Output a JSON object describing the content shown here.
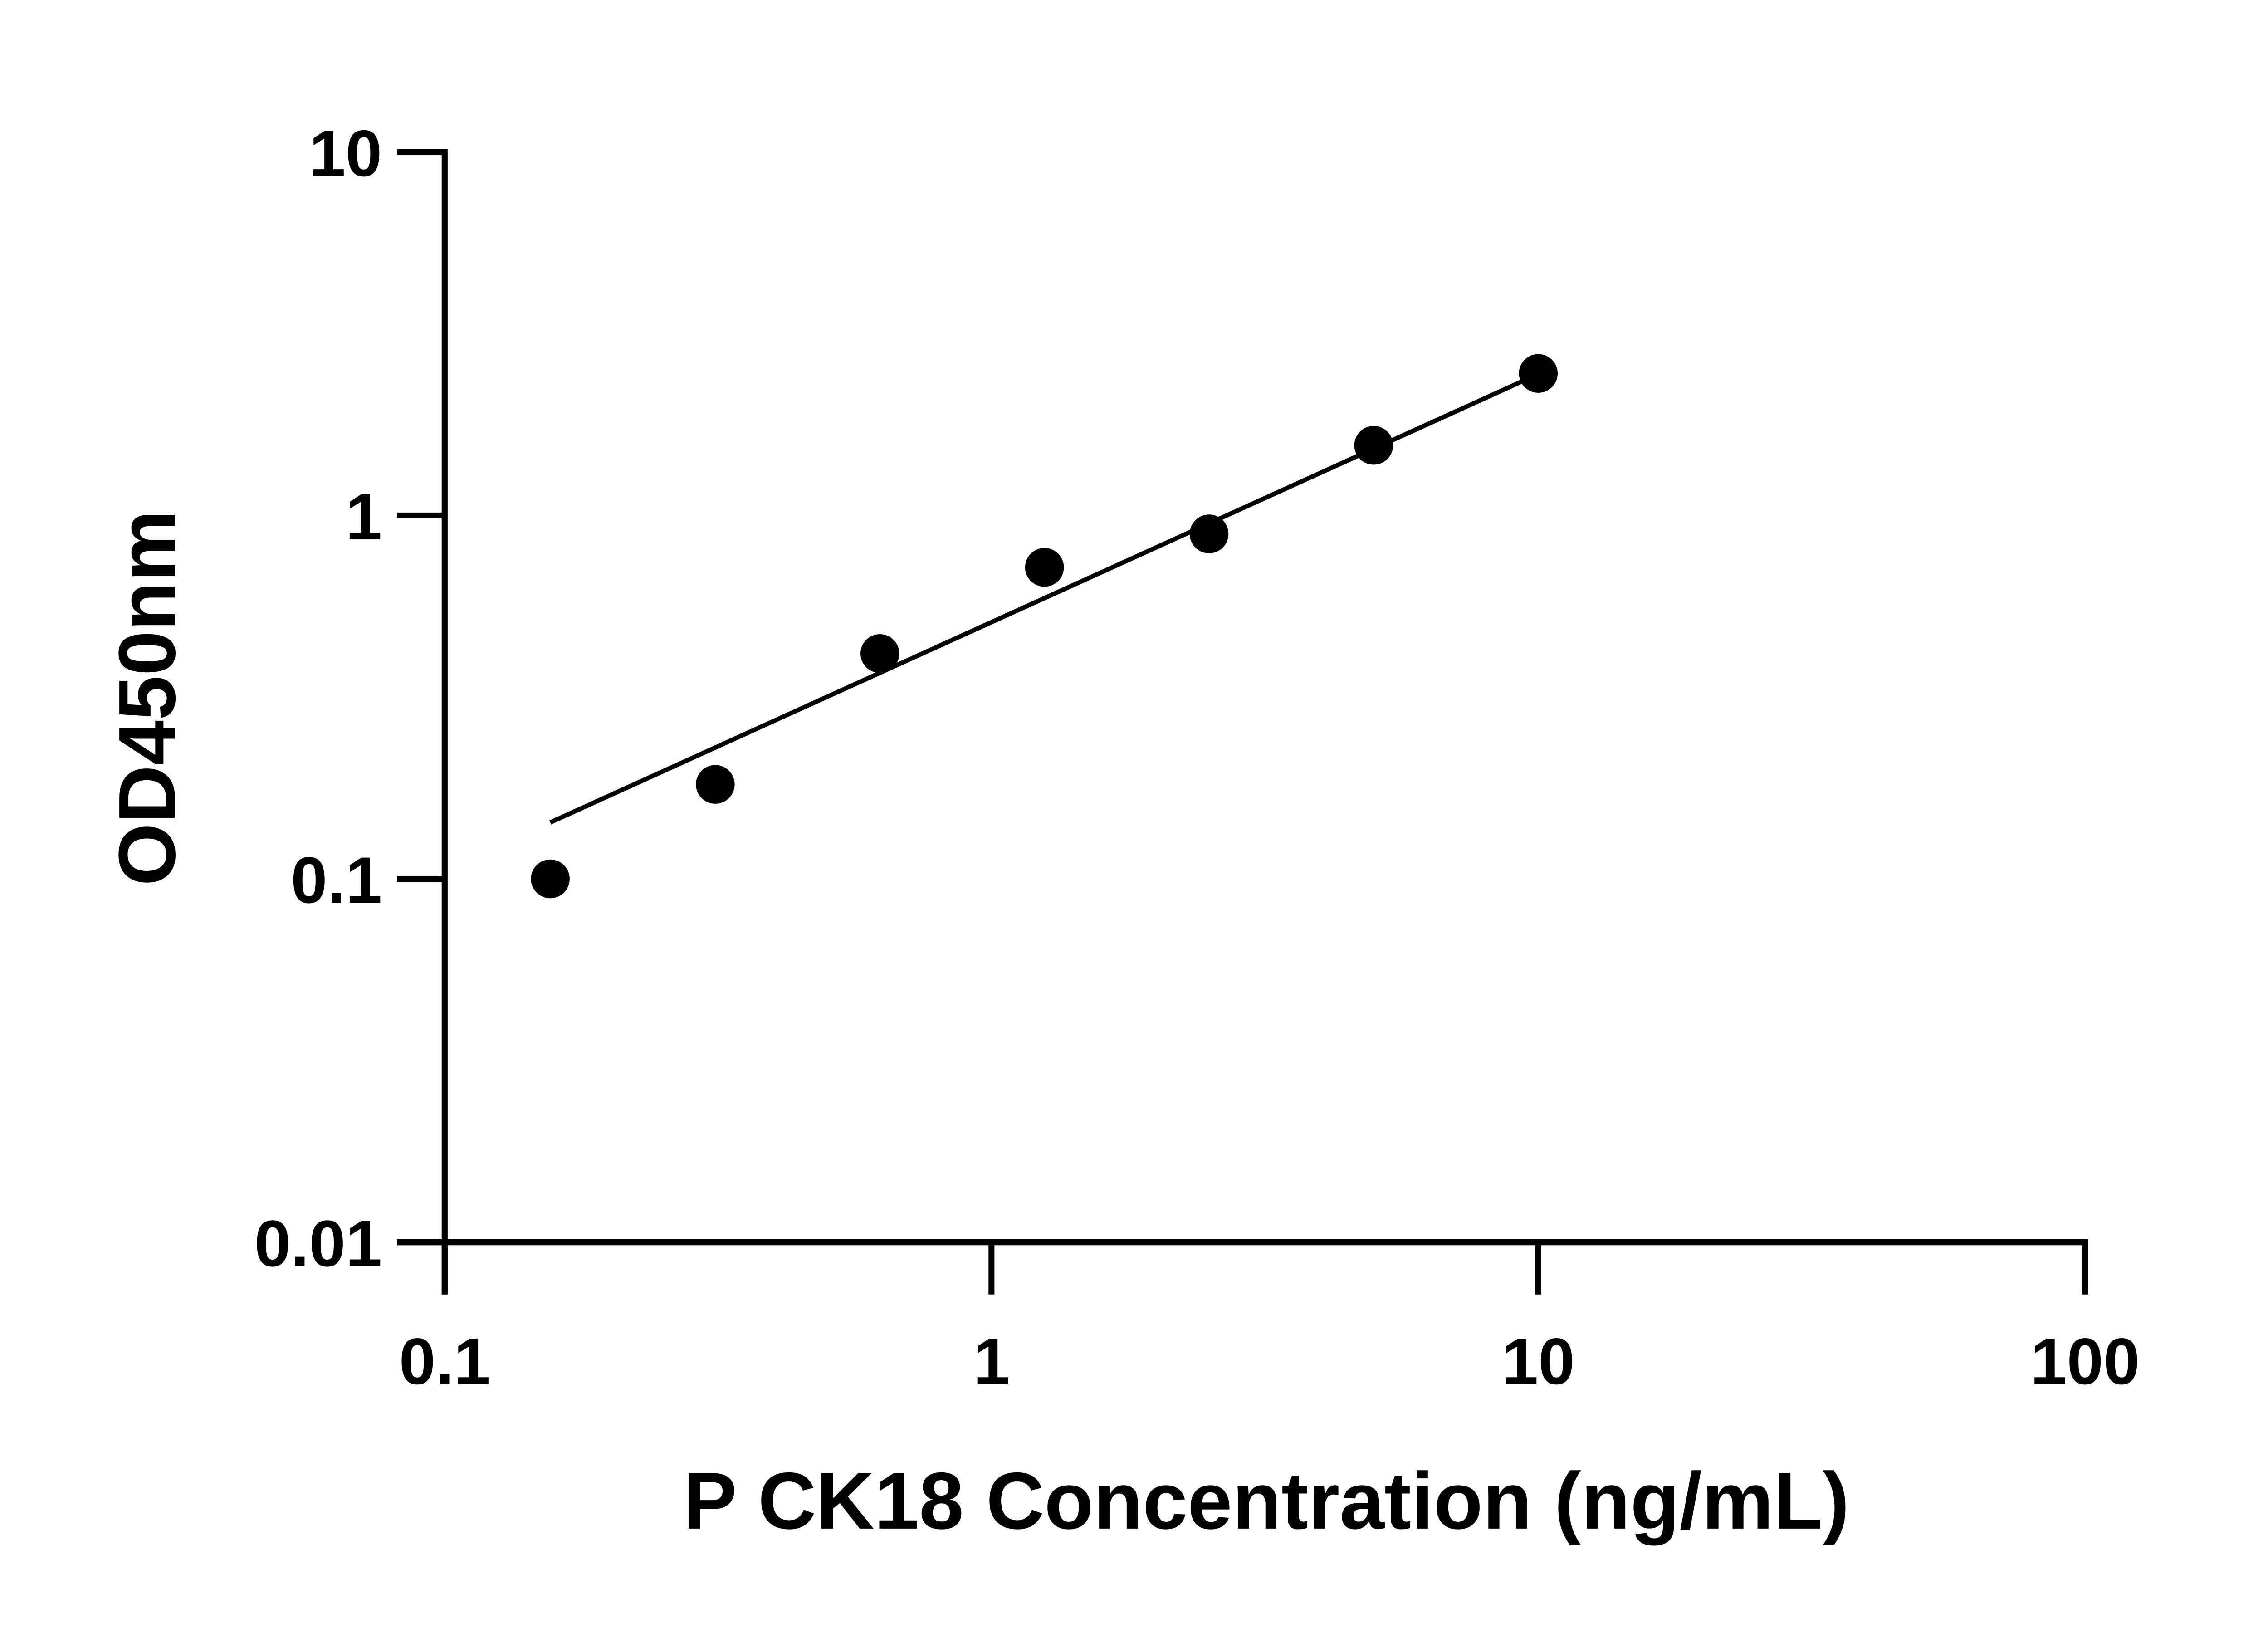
{
  "chart_data": {
    "type": "scatter",
    "title": "",
    "xlabel": "P CK18 Concentration (ng/mL)",
    "ylabel": "OD450nm",
    "x_scale": "log",
    "y_scale": "log",
    "xlim": [
      0.1,
      100
    ],
    "ylim": [
      0.01,
      10
    ],
    "x_ticks": [
      0.1,
      1,
      10,
      100
    ],
    "x_tick_labels": [
      "0.1",
      "1",
      "10",
      "100"
    ],
    "y_ticks": [
      0.01,
      0.1,
      1,
      10
    ],
    "y_tick_labels": [
      "0.01",
      "0.1",
      "1",
      "10"
    ],
    "grid": false,
    "legend": "none",
    "color": "#000000",
    "points": {
      "x": [
        0.156,
        0.3125,
        0.625,
        1.25,
        2.5,
        5,
        10
      ],
      "y": [
        0.1,
        0.182,
        0.417,
        0.72,
        0.89,
        1.56,
        2.46
      ]
    },
    "fit_line": {
      "x": [
        0.156,
        9.4
      ],
      "y": [
        0.143,
        2.35
      ]
    }
  }
}
